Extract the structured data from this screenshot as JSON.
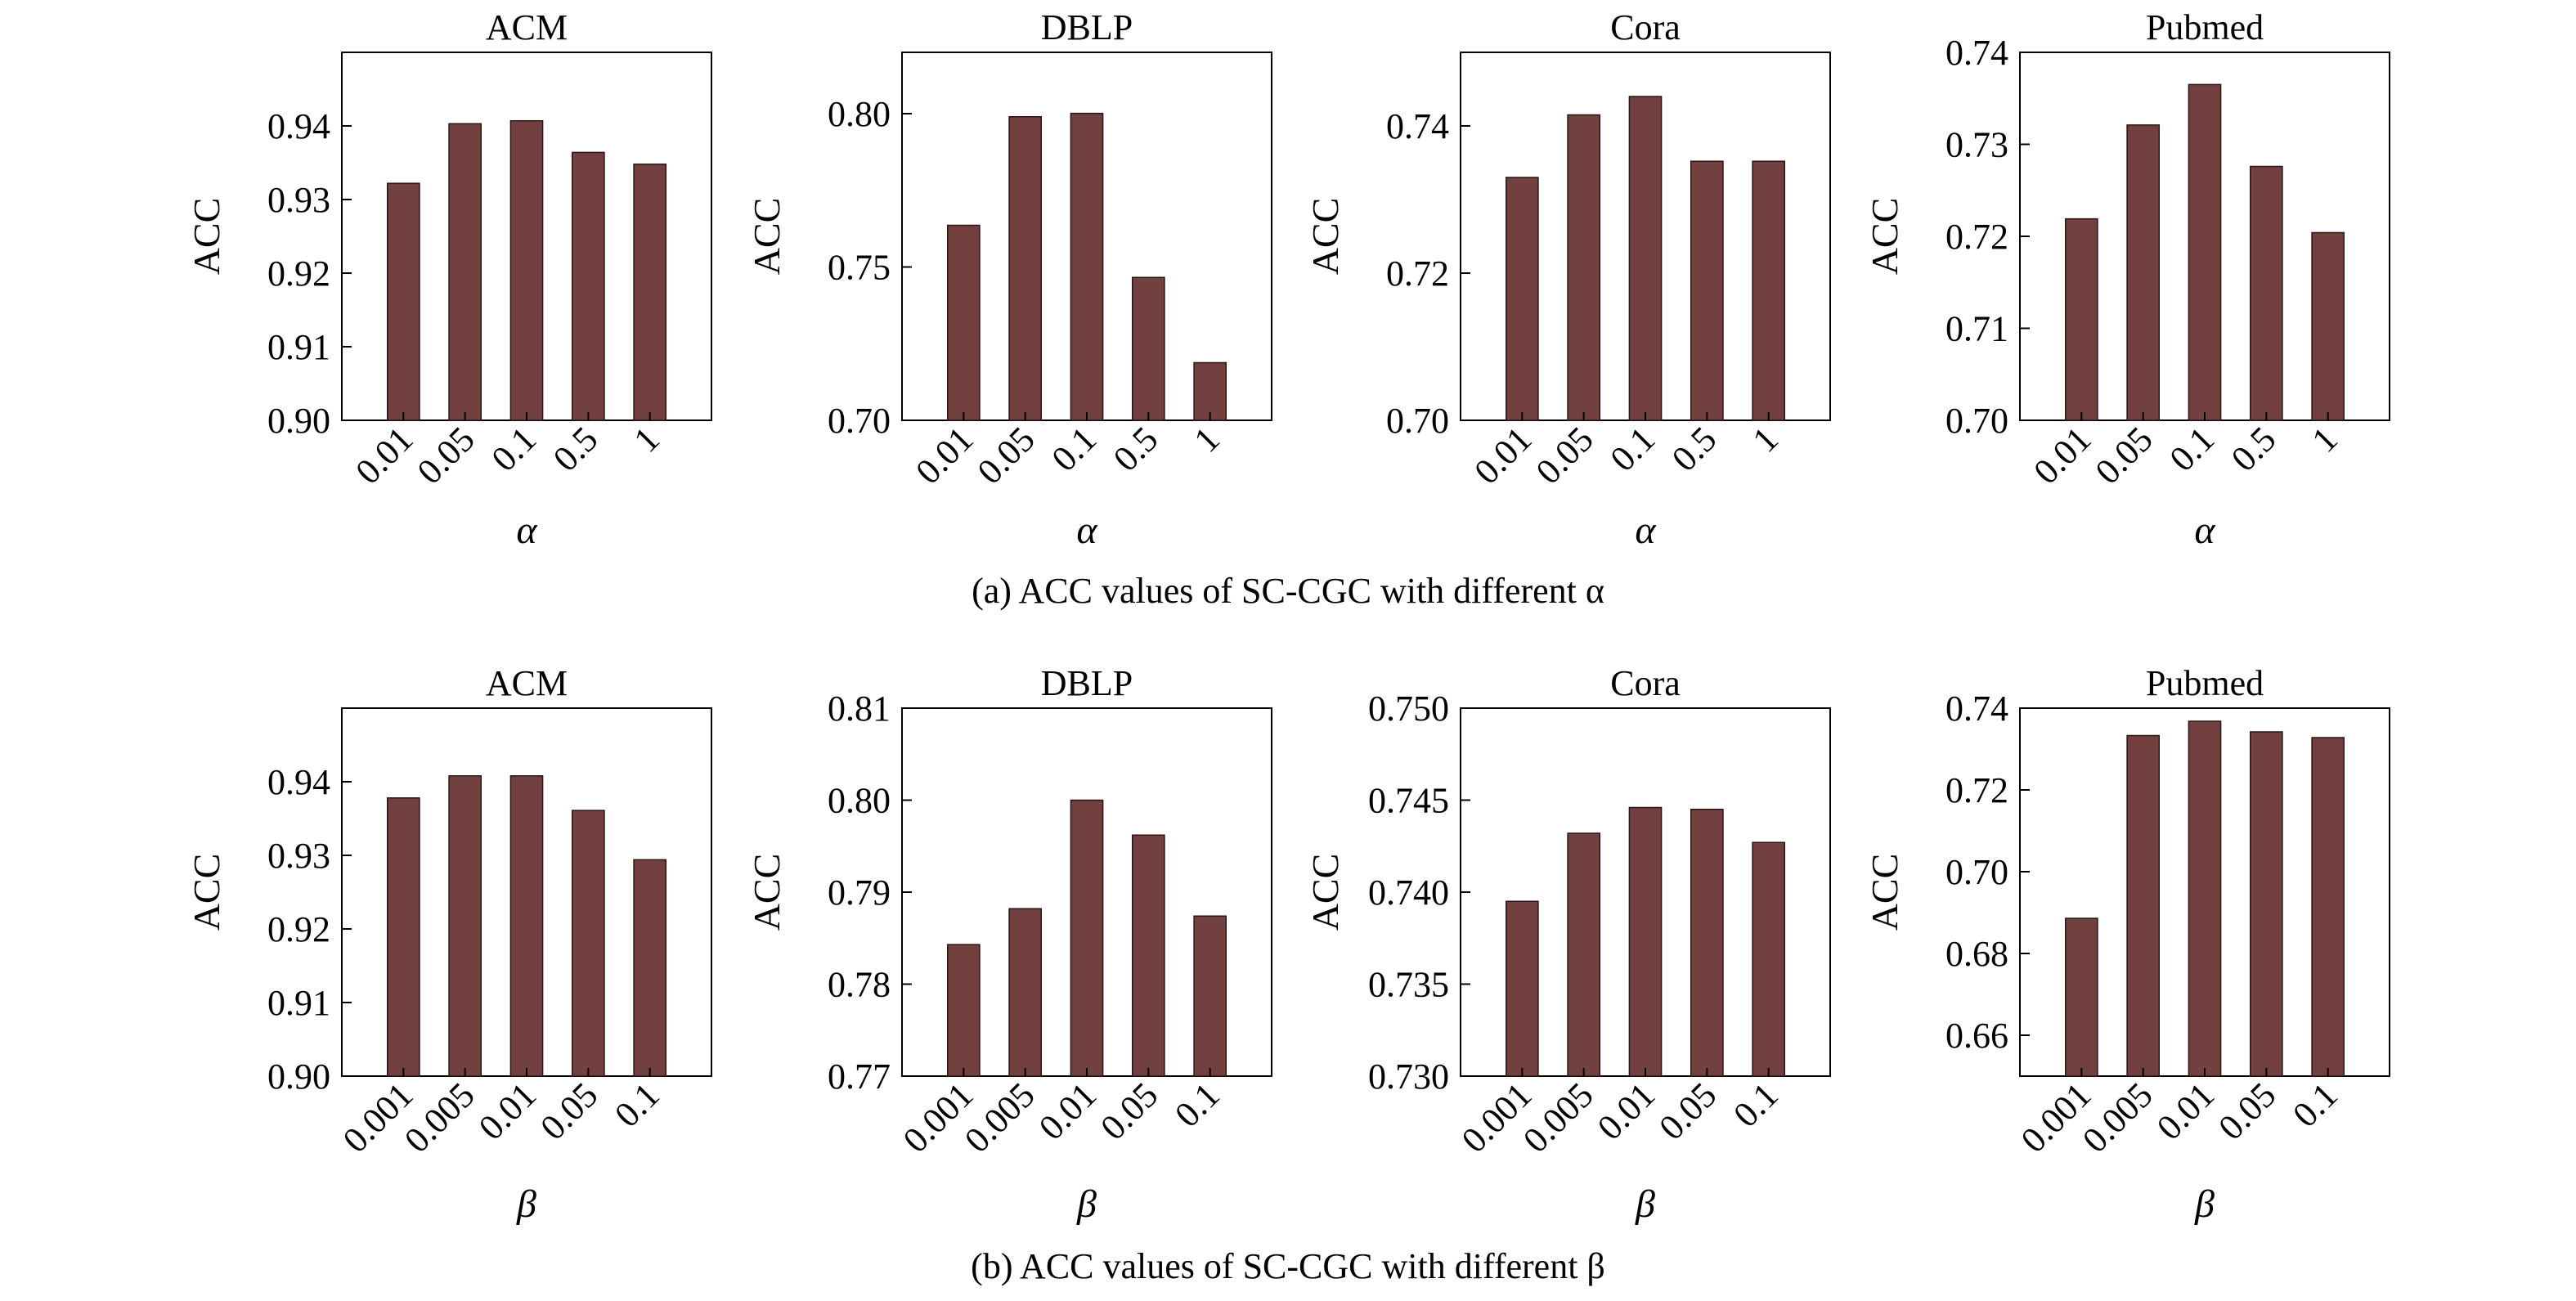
{
  "style": {
    "bar_color": "#72403f",
    "axis_color": "#000000"
  },
  "captions": {
    "a": "(a) ACC values of SC-CGC with different α",
    "b": "(b) ACC values of SC-CGC with different β"
  },
  "chart_data": [
    {
      "type": "bar",
      "title": "ACM",
      "xlabel": "α",
      "ylabel": "ACC",
      "categories": [
        "0.01",
        "0.05",
        "0.1",
        "0.5",
        "1"
      ],
      "values": [
        0.9322,
        0.9403,
        0.9407,
        0.9364,
        0.9348
      ],
      "ylim": [
        0.9,
        0.95
      ],
      "yticks": [
        "0.90",
        "0.91",
        "0.92",
        "0.93",
        "0.94"
      ],
      "grid": false
    },
    {
      "type": "bar",
      "title": "DBLP",
      "xlabel": "α",
      "ylabel": "ACC",
      "categories": [
        "0.01",
        "0.05",
        "0.1",
        "0.5",
        "1"
      ],
      "values": [
        0.7636,
        0.799,
        0.8001,
        0.7466,
        0.7188
      ],
      "ylim": [
        0.7,
        0.82
      ],
      "yticks": [
        "0.70",
        "0.75",
        "0.80"
      ],
      "grid": false
    },
    {
      "type": "bar",
      "title": "Cora",
      "xlabel": "α",
      "ylabel": "ACC",
      "categories": [
        "0.01",
        "0.05",
        "0.1",
        "0.5",
        "1"
      ],
      "values": [
        0.733,
        0.7415,
        0.744,
        0.7352,
        0.7352
      ],
      "ylim": [
        0.7,
        0.75
      ],
      "yticks": [
        "0.70",
        "0.72",
        "0.74"
      ],
      "grid": false
    },
    {
      "type": "bar",
      "title": "Pubmed",
      "xlabel": "α",
      "ylabel": "ACC",
      "categories": [
        "0.01",
        "0.05",
        "0.1",
        "0.5",
        "1"
      ],
      "values": [
        0.7219,
        0.7321,
        0.7365,
        0.7276,
        0.7204
      ],
      "ylim": [
        0.7,
        0.74
      ],
      "yticks": [
        "0.70",
        "0.71",
        "0.72",
        "0.73",
        "0.74"
      ],
      "grid": false
    },
    {
      "type": "bar",
      "title": "ACM",
      "xlabel": "β",
      "ylabel": "ACC",
      "categories": [
        "0.001",
        "0.005",
        "0.01",
        "0.05",
        "0.1"
      ],
      "values": [
        0.9378,
        0.9408,
        0.9408,
        0.9361,
        0.9294
      ],
      "ylim": [
        0.9,
        0.95
      ],
      "yticks": [
        "0.90",
        "0.91",
        "0.92",
        "0.93",
        "0.94"
      ],
      "grid": false
    },
    {
      "type": "bar",
      "title": "DBLP",
      "xlabel": "β",
      "ylabel": "ACC",
      "categories": [
        "0.001",
        "0.005",
        "0.01",
        "0.05",
        "0.1"
      ],
      "values": [
        0.7843,
        0.7882,
        0.8,
        0.7962,
        0.7874
      ],
      "ylim": [
        0.77,
        0.81
      ],
      "yticks": [
        "0.77",
        "0.78",
        "0.79",
        "0.80",
        "0.81"
      ],
      "grid": false
    },
    {
      "type": "bar",
      "title": "Cora",
      "xlabel": "β",
      "ylabel": "ACC",
      "categories": [
        "0.001",
        "0.005",
        "0.01",
        "0.05",
        "0.1"
      ],
      "values": [
        0.7395,
        0.7432,
        0.7446,
        0.7445,
        0.7427
      ],
      "ylim": [
        0.73,
        0.75
      ],
      "yticks": [
        "0.730",
        "0.735",
        "0.740",
        "0.745",
        "0.750"
      ],
      "grid": false
    },
    {
      "type": "bar",
      "title": "Pubmed",
      "xlabel": "β",
      "ylabel": "ACC",
      "categories": [
        "0.001",
        "0.005",
        "0.01",
        "0.05",
        "0.1"
      ],
      "values": [
        0.6886,
        0.7333,
        0.7368,
        0.7342,
        0.7328
      ],
      "ylim": [
        0.65,
        0.74
      ],
      "yticks": [
        "0.66",
        "0.68",
        "0.70",
        "0.72",
        "0.74"
      ],
      "grid": false
    }
  ]
}
